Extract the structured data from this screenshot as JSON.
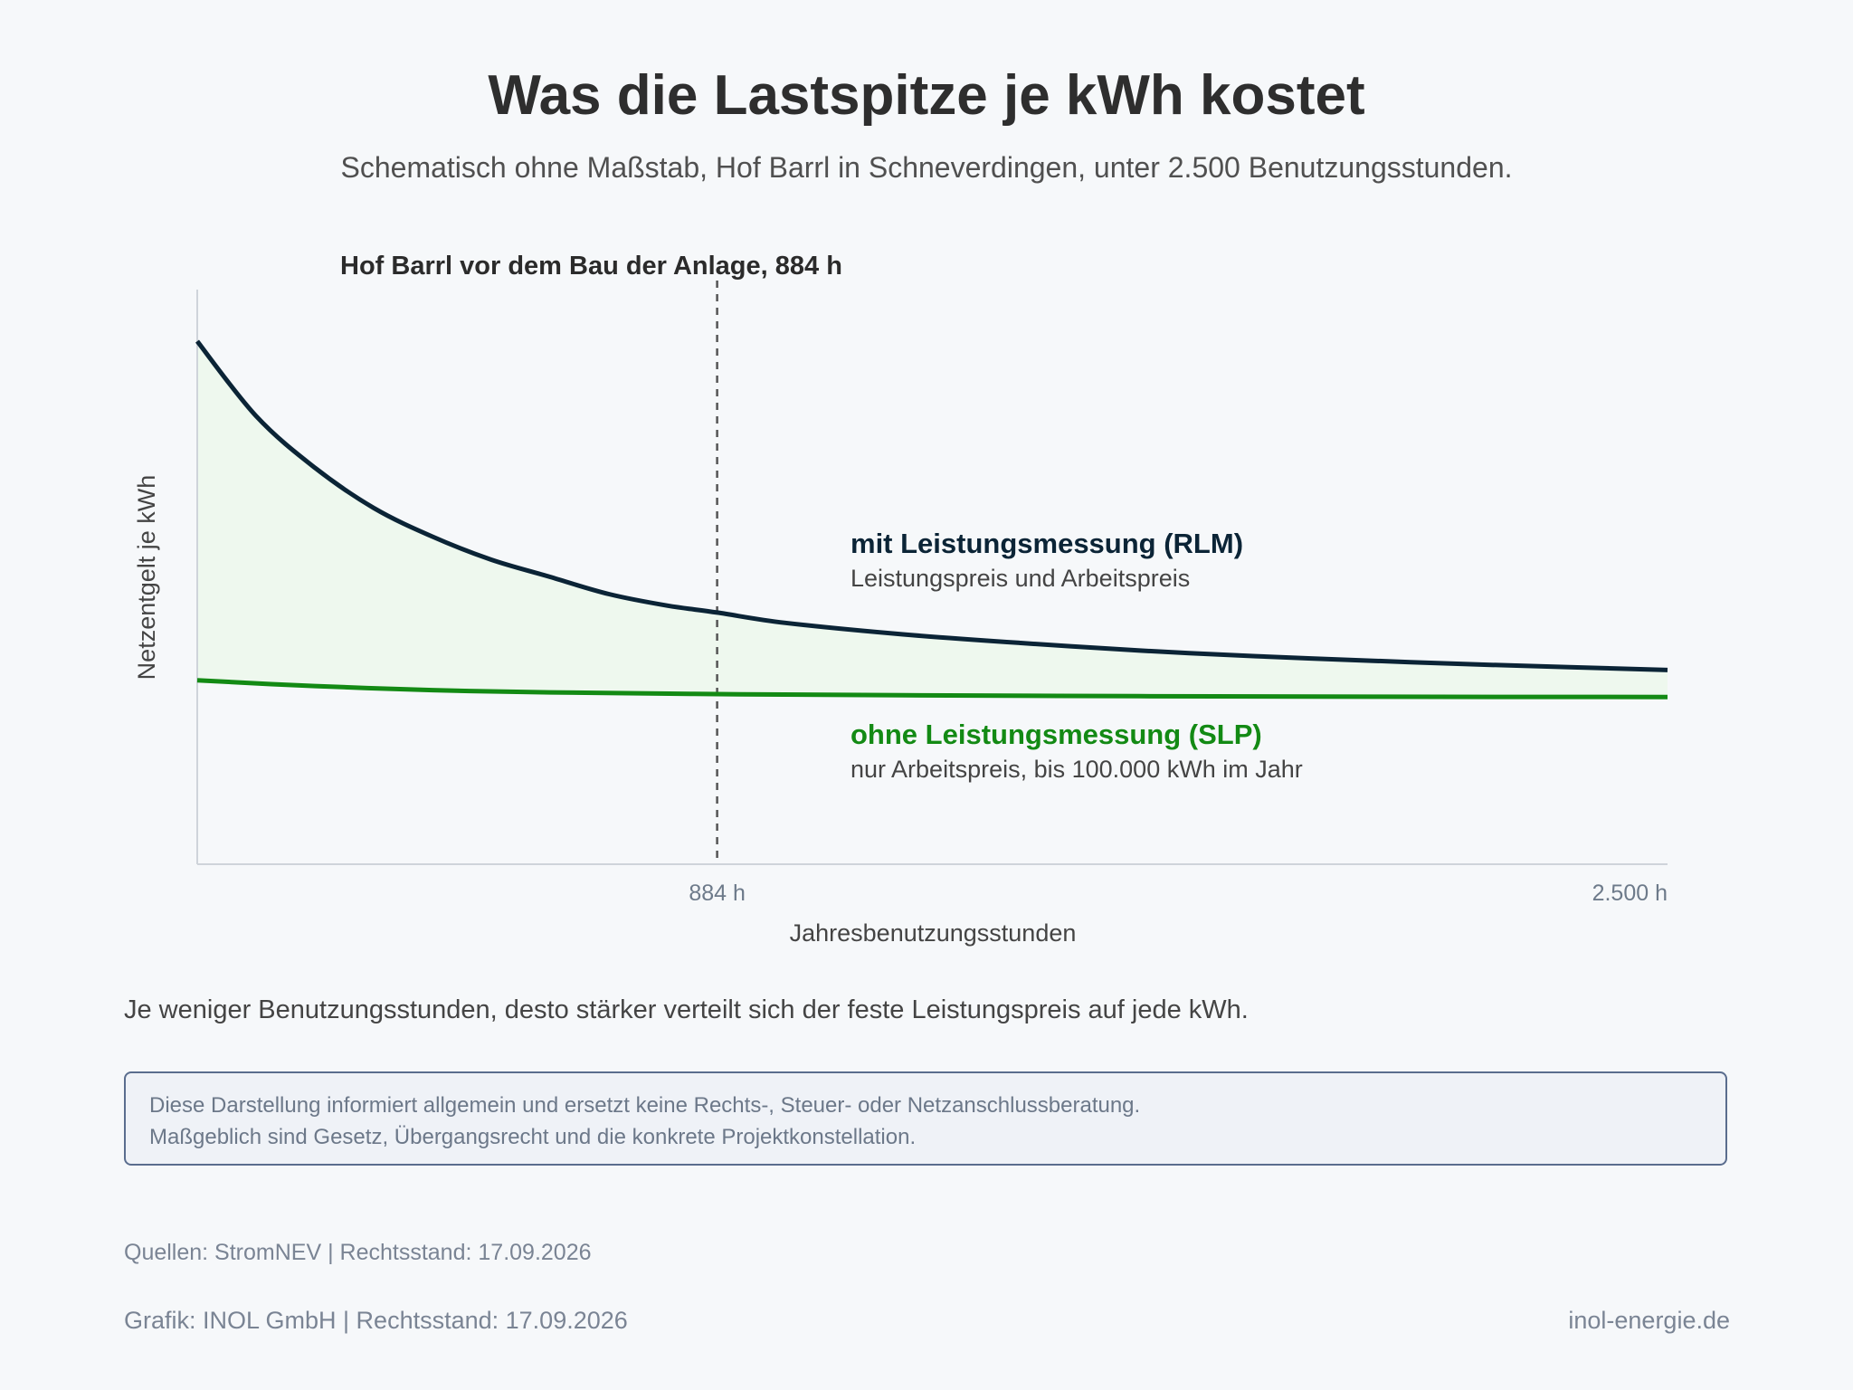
{
  "header": {
    "title": "Was die Lastspitze je kWh kostet",
    "subtitle": "Schematisch ohne Maßstab, Hof Barrl in Schneverdingen, unter 2.500 Benutzungsstunden."
  },
  "chart_data": {
    "type": "line",
    "title": "Was die Lastspitze je kWh kostet",
    "xlabel": "Jahresbenutzungsstunden",
    "ylabel": "Netzentgelt je kWh",
    "xlim": [
      0,
      2500
    ],
    "x_ticks": [
      {
        "value": 884,
        "label": "884 h"
      },
      {
        "value": 2500,
        "label": "2.500 h"
      }
    ],
    "y_scale": "schematisch, ohne Maßstab",
    "grid": false,
    "shaded_between_series": true,
    "series": [
      {
        "name": "mit Leistungsmessung (RLM)",
        "note": "Leistungspreis und Arbeitspreis",
        "color": "#0b2436",
        "x": [
          0,
          100,
          200,
          300,
          400,
          500,
          600,
          700,
          800,
          884,
          1000,
          1200,
          1400,
          1600,
          1800,
          2000,
          2200,
          2500
        ],
        "y": [
          0.91,
          0.78,
          0.69,
          0.62,
          0.57,
          0.53,
          0.5,
          0.47,
          0.45,
          0.438,
          0.42,
          0.4,
          0.385,
          0.372,
          0.362,
          0.354,
          0.347,
          0.338
        ]
      },
      {
        "name": "ohne Leistungsmessung (SLP)",
        "note": "nur Arbeitspreis, bis 100.000 kWh im Jahr",
        "color": "#138a14",
        "x": [
          0,
          200,
          400,
          600,
          884,
          1200,
          1600,
          2000,
          2500
        ],
        "y": [
          0.32,
          0.31,
          0.303,
          0.299,
          0.296,
          0.294,
          0.2925,
          0.2915,
          0.291
        ]
      }
    ],
    "reference_line": {
      "x": 884,
      "label": "Hof Barrl vor dem Bau der Anlage, 884 h"
    }
  },
  "caption": "Je weniger Benutzungsstunden, desto stärker verteilt sich der feste Leistungspreis auf jede kWh.",
  "disclaimer": {
    "line1": "Diese Darstellung informiert allgemein und ersetzt keine Rechts-, Steuer- oder Netzanschlussberatung.",
    "line2": "Maßgeblich sind Gesetz, Übergangsrecht und die konkrete Projektkonstellation."
  },
  "footer": {
    "sources": "Quellen: StromNEV | Rechtsstand: 17.09.2026",
    "credit": "Grafik: INOL GmbH | Rechtsstand: 17.09.2026",
    "website": "inol-energie.de"
  },
  "colors": {
    "background": "#f6f8fa",
    "rlm": "#0b2436",
    "slp": "#138a14",
    "fill": "#eef8ee"
  }
}
